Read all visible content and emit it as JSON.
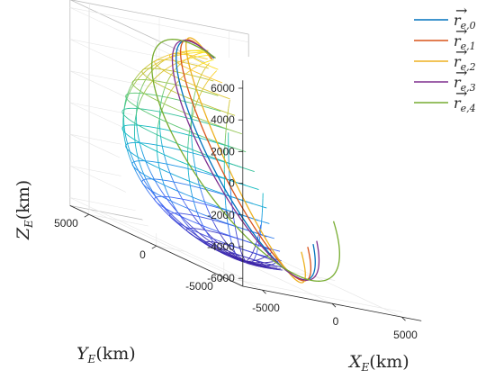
{
  "chart_data": {
    "type": "line",
    "plot_kind": "3d-orbits-around-sphere",
    "axes": {
      "x": {
        "label": "X_E (km)",
        "ticks": [
          -5000,
          0,
          5000
        ],
        "range": [
          -6400,
          6400
        ]
      },
      "y": {
        "label": "Y_E (km)",
        "ticks": [
          -5000,
          0,
          5000
        ],
        "range": [
          -6400,
          6400
        ]
      },
      "z": {
        "label": "Z_E (km)",
        "ticks": [
          -6000,
          -4000,
          -2000,
          0,
          2000,
          4000,
          6000
        ],
        "range": [
          -6500,
          6500
        ]
      }
    },
    "grid": true,
    "legend_position": "top-right",
    "sphere": {
      "radius_km": 6378,
      "colormap": "parula"
    },
    "series": [
      {
        "name": "r_e,0",
        "color": "#0072BD",
        "radius_km": 6950,
        "inclination_deg": 62,
        "raan_deg": 32
      },
      {
        "name": "r_e,1",
        "color": "#D95319",
        "radius_km": 7000,
        "inclination_deg": 63,
        "raan_deg": 36
      },
      {
        "name": "r_e,2",
        "color": "#EDB120",
        "radius_km": 7100,
        "inclination_deg": 65,
        "raan_deg": 40
      },
      {
        "name": "r_e,3",
        "color": "#7E2F8E",
        "radius_km": 6980,
        "inclination_deg": 61,
        "raan_deg": 30
      },
      {
        "name": "r_e,4",
        "color": "#77AC30",
        "radius_km": 7150,
        "inclination_deg": 55,
        "raan_deg": 20
      }
    ]
  },
  "legend": [
    {
      "base": "r",
      "sub": "e,0"
    },
    {
      "base": "r",
      "sub": "e,1"
    },
    {
      "base": "r",
      "sub": "e,2"
    },
    {
      "base": "r",
      "sub": "e,3"
    },
    {
      "base": "r",
      "sub": "e,4"
    }
  ],
  "labels": {
    "x": {
      "main": "X",
      "sub": "E",
      "unit": "(km)"
    },
    "y": {
      "main": "Y",
      "sub": "E",
      "unit": "(km)"
    },
    "z": {
      "main": "Z",
      "sub": "E",
      "unit": "(km)"
    }
  }
}
